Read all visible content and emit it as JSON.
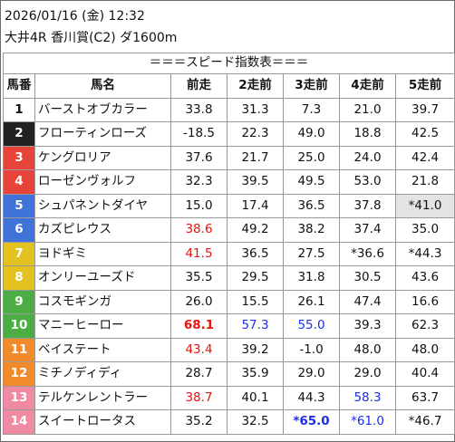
{
  "header": {
    "line1": "2026/01/16 (金) 12:32",
    "line2": "大井4R 香川賞(C2) ダ1600m"
  },
  "table": {
    "title": "＝＝＝スピード指数表＝＝＝",
    "columns": [
      "馬番",
      "馬名",
      "前走",
      "2走前",
      "3走前",
      "4走前",
      "5走前"
    ],
    "rows": [
      {
        "num": "1",
        "name": "バーストオブカラー",
        "color": "#ffffff",
        "text_color": "#111111",
        "vals": [
          {
            "v": "33.8"
          },
          {
            "v": "31.3"
          },
          {
            "v": "7.3"
          },
          {
            "v": "21.0"
          },
          {
            "v": "39.7"
          }
        ]
      },
      {
        "num": "2",
        "name": "フローティンローズ",
        "color": "#222222",
        "text_color": "#ffffff",
        "vals": [
          {
            "v": "-18.5"
          },
          {
            "v": "22.3"
          },
          {
            "v": "49.0"
          },
          {
            "v": "18.8"
          },
          {
            "v": "42.5"
          }
        ]
      },
      {
        "num": "3",
        "name": "ケングロリア",
        "color": "#e8433b",
        "text_color": "#ffffff",
        "vals": [
          {
            "v": "37.6"
          },
          {
            "v": "21.7"
          },
          {
            "v": "25.0"
          },
          {
            "v": "24.0"
          },
          {
            "v": "42.4"
          }
        ]
      },
      {
        "num": "4",
        "name": "ローゼンヴォルフ",
        "color": "#e8433b",
        "text_color": "#ffffff",
        "vals": [
          {
            "v": "32.3"
          },
          {
            "v": "39.5"
          },
          {
            "v": "49.5"
          },
          {
            "v": "53.0"
          },
          {
            "v": "21.8"
          }
        ]
      },
      {
        "num": "5",
        "name": "シュパネントダイヤ",
        "color": "#3f73d9",
        "text_color": "#ffffff",
        "vals": [
          {
            "v": "15.0"
          },
          {
            "v": "17.4"
          },
          {
            "v": "36.5"
          },
          {
            "v": "37.8"
          },
          {
            "v": "*41.0",
            "s": "gray"
          }
        ]
      },
      {
        "num": "6",
        "name": "カズピレウス",
        "color": "#3f73d9",
        "text_color": "#ffffff",
        "vals": [
          {
            "v": "38.6",
            "s": "red"
          },
          {
            "v": "49.2"
          },
          {
            "v": "38.2"
          },
          {
            "v": "37.4"
          },
          {
            "v": "35.0"
          }
        ]
      },
      {
        "num": "7",
        "name": "ヨドギミ",
        "color": "#e2c21e",
        "text_color": "#ffffff",
        "vals": [
          {
            "v": "41.5",
            "s": "red"
          },
          {
            "v": "36.5"
          },
          {
            "v": "27.5"
          },
          {
            "v": "*36.6"
          },
          {
            "v": "*44.3"
          }
        ]
      },
      {
        "num": "8",
        "name": "オンリーユーズド",
        "color": "#e2c21e",
        "text_color": "#ffffff",
        "vals": [
          {
            "v": "35.5"
          },
          {
            "v": "29.5"
          },
          {
            "v": "31.8"
          },
          {
            "v": "30.5"
          },
          {
            "v": "43.6"
          }
        ]
      },
      {
        "num": "9",
        "name": "コスモギンガ",
        "color": "#4cad45",
        "text_color": "#ffffff",
        "vals": [
          {
            "v": "26.0"
          },
          {
            "v": "15.5"
          },
          {
            "v": "26.1"
          },
          {
            "v": "47.4"
          },
          {
            "v": "16.6"
          }
        ]
      },
      {
        "num": "10",
        "name": "マニーヒーロー",
        "color": "#4cad45",
        "text_color": "#ffffff",
        "vals": [
          {
            "v": "68.1",
            "s": "red bold"
          },
          {
            "v": "57.3",
            "s": "blue"
          },
          {
            "v": "55.0",
            "s": "blue"
          },
          {
            "v": "39.3"
          },
          {
            "v": "62.3"
          }
        ]
      },
      {
        "num": "11",
        "name": "ベイステート",
        "color": "#f08a2b",
        "text_color": "#ffffff",
        "vals": [
          {
            "v": "43.4",
            "s": "red"
          },
          {
            "v": "39.2"
          },
          {
            "v": "-1.0"
          },
          {
            "v": "48.0"
          },
          {
            "v": "48.0"
          }
        ]
      },
      {
        "num": "12",
        "name": "ミチノディディ",
        "color": "#f08a2b",
        "text_color": "#ffffff",
        "vals": [
          {
            "v": "28.7"
          },
          {
            "v": "35.9"
          },
          {
            "v": "29.0"
          },
          {
            "v": "29.0"
          },
          {
            "v": "40.4"
          }
        ]
      },
      {
        "num": "13",
        "name": "テルケンレントラー",
        "color": "#ef8aa2",
        "text_color": "#ffffff",
        "vals": [
          {
            "v": "38.7",
            "s": "red"
          },
          {
            "v": "40.1"
          },
          {
            "v": "44.3"
          },
          {
            "v": "58.3",
            "s": "blue"
          },
          {
            "v": "63.7"
          }
        ]
      },
      {
        "num": "14",
        "name": "スイートロータス",
        "color": "#ef8aa2",
        "text_color": "#ffffff",
        "vals": [
          {
            "v": "35.2"
          },
          {
            "v": "32.5"
          },
          {
            "v": "*65.0",
            "s": "blue bold"
          },
          {
            "v": "*61.0",
            "s": "blue"
          },
          {
            "v": "*46.7"
          }
        ]
      }
    ]
  }
}
